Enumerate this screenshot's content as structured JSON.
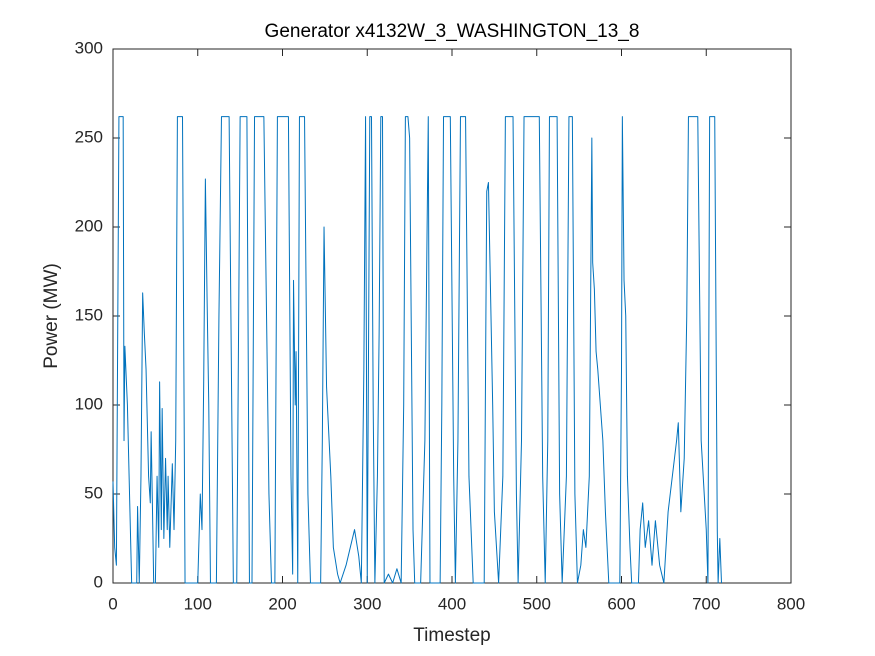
{
  "chart_data": {
    "type": "line",
    "title": "Generator x4132W_3_WASHINGTON_13_8",
    "x_label": "Timestep",
    "y_label": "Power (MW)",
    "xlim": [
      0,
      800
    ],
    "xticks": [
      0,
      100,
      200,
      300,
      400,
      500,
      600,
      700,
      800
    ],
    "ylim": [
      0,
      300
    ],
    "yticks": [
      0,
      50,
      100,
      150,
      200,
      250,
      300
    ],
    "grid": false,
    "x": [
      0,
      2,
      4,
      7,
      12,
      13,
      14,
      17,
      20,
      22,
      28,
      29,
      31,
      33,
      35,
      37,
      39,
      42,
      44,
      45,
      47,
      48,
      50,
      52,
      54,
      55,
      57,
      58,
      60,
      62,
      64,
      65,
      67,
      70,
      72,
      74,
      76,
      82,
      85,
      100,
      103,
      105,
      107,
      109,
      111,
      113,
      115,
      122,
      125,
      128,
      137,
      142,
      146,
      150,
      158,
      161,
      164,
      167,
      178,
      184,
      187,
      191,
      194,
      207,
      210,
      212,
      213,
      215,
      216,
      218,
      220,
      226,
      230,
      233,
      245,
      247,
      249,
      252,
      255,
      257,
      260,
      265,
      268,
      275,
      280,
      285,
      290,
      293,
      296,
      298,
      300,
      303,
      305,
      307,
      309,
      312,
      314,
      316,
      318,
      320,
      325,
      330,
      335,
      340,
      343,
      345,
      348,
      350,
      352,
      354,
      356,
      363,
      368,
      372,
      374,
      386,
      388,
      390,
      398,
      402,
      404,
      407,
      410,
      416,
      420,
      425,
      438,
      440,
      441,
      443,
      446,
      448,
      450,
      455,
      460,
      463,
      472,
      476,
      478,
      482,
      485,
      503,
      507,
      510,
      513,
      515,
      524,
      527,
      530,
      535,
      538,
      542,
      545,
      548,
      552,
      555,
      558,
      562,
      565,
      566,
      568,
      570,
      572,
      575,
      578,
      581,
      585,
      598,
      600,
      601,
      603,
      605,
      607,
      610,
      612,
      620,
      622,
      625,
      628,
      632,
      636,
      640,
      645,
      650,
      655,
      660,
      665,
      667,
      670,
      674,
      677,
      679,
      690,
      694,
      700,
      702,
      704,
      710,
      713,
      714,
      716,
      718
    ],
    "series": [
      {
        "name": "Power",
        "color": "#0072bd",
        "values": [
          57,
          20,
          10,
          262,
          262,
          80,
          133,
          100,
          40,
          0,
          0,
          43,
          0,
          60,
          163,
          140,
          120,
          60,
          45,
          85,
          30,
          0,
          0,
          60,
          20,
          113,
          30,
          98,
          25,
          70,
          30,
          60,
          20,
          67,
          30,
          80,
          262,
          262,
          0,
          0,
          50,
          30,
          112,
          227,
          160,
          100,
          0,
          0,
          150,
          262,
          262,
          0,
          0,
          262,
          262,
          0,
          0,
          262,
          262,
          50,
          0,
          0,
          262,
          262,
          60,
          5,
          170,
          100,
          130,
          0,
          262,
          262,
          50,
          0,
          0,
          80,
          200,
          110,
          80,
          60,
          20,
          5,
          0,
          10,
          20,
          30,
          15,
          0,
          120,
          262,
          0,
          262,
          262,
          100,
          0,
          60,
          140,
          262,
          262,
          0,
          5,
          0,
          8,
          0,
          100,
          262,
          262,
          250,
          140,
          30,
          0,
          0,
          80,
          262,
          0,
          0,
          100,
          262,
          262,
          60,
          0,
          80,
          262,
          262,
          60,
          0,
          0,
          150,
          220,
          225,
          150,
          100,
          40,
          0,
          60,
          262,
          262,
          50,
          0,
          80,
          262,
          262,
          60,
          0,
          80,
          262,
          262,
          50,
          0,
          60,
          262,
          262,
          50,
          0,
          10,
          30,
          20,
          60,
          250,
          180,
          165,
          130,
          120,
          100,
          80,
          40,
          0,
          0,
          120,
          262,
          170,
          150,
          60,
          20,
          0,
          0,
          30,
          45,
          20,
          35,
          10,
          35,
          10,
          0,
          40,
          60,
          80,
          90,
          40,
          70,
          150,
          262,
          262,
          80,
          30,
          0,
          262,
          262,
          30,
          0,
          25,
          0
        ]
      }
    ]
  }
}
